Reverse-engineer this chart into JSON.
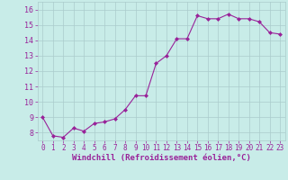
{
  "x": [
    0,
    1,
    2,
    3,
    4,
    5,
    6,
    7,
    8,
    9,
    10,
    11,
    12,
    13,
    14,
    15,
    16,
    17,
    18,
    19,
    20,
    21,
    22,
    23
  ],
  "y": [
    9.0,
    7.8,
    7.7,
    8.3,
    8.1,
    8.6,
    8.7,
    8.9,
    9.5,
    10.4,
    10.4,
    12.5,
    13.0,
    14.1,
    14.1,
    15.6,
    15.4,
    15.4,
    15.7,
    15.4,
    15.4,
    15.2,
    14.5,
    14.4
  ],
  "line_color": "#992299",
  "marker": "D",
  "marker_size": 2,
  "bg_color": "#c8ece8",
  "grid_color": "#aacccc",
  "xlabel": "Windchill (Refroidissement éolien,°C)",
  "xlabel_fontsize": 6.5,
  "xlabel_color": "#992299",
  "tick_color": "#992299",
  "ylim": [
    7.5,
    16.5
  ],
  "xlim": [
    -0.5,
    23.5
  ],
  "yticks": [
    8,
    9,
    10,
    11,
    12,
    13,
    14,
    15,
    16
  ],
  "xticks": [
    0,
    1,
    2,
    3,
    4,
    5,
    6,
    7,
    8,
    9,
    10,
    11,
    12,
    13,
    14,
    15,
    16,
    17,
    18,
    19,
    20,
    21,
    22,
    23
  ],
  "tick_fontsize": 5.5,
  "ytick_fontsize": 6.0
}
